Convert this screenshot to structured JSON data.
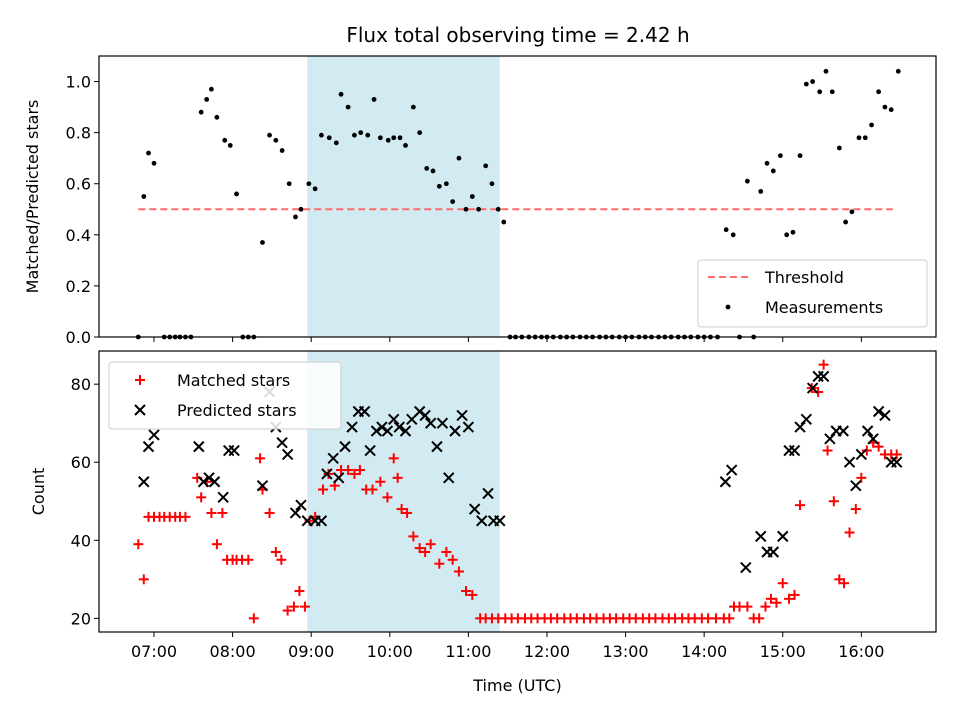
{
  "title": "Flux total observing time = 2.42 h",
  "colors": {
    "shade": "#add8e6",
    "threshold": "#ff6b6b",
    "measurement": "#000000",
    "matched": "#ff0000",
    "predicted": "#000000"
  },
  "chart_data": [
    {
      "type": "scatter",
      "ylabel": "Matched/Predicted stars",
      "xlabel": "",
      "xlim": [
        6.3,
        16.95
      ],
      "ylim": [
        0,
        1.1
      ],
      "yticks": [
        "0.0",
        "0.2",
        "0.4",
        "0.6",
        "0.8",
        "1.0"
      ],
      "ytick_values": [
        0,
        0.2,
        0.4,
        0.6,
        0.8,
        1.0
      ],
      "shaded_span": [
        8.95,
        11.4
      ],
      "threshold": {
        "name": "Threshold",
        "value": 0.5,
        "x_range": [
          6.8,
          16.4
        ]
      },
      "legend": [
        "Threshold",
        "Measurements"
      ],
      "legend_location": "lower right",
      "series": [
        {
          "name": "Measurements",
          "x": [
            6.8,
            6.87,
            6.93,
            7.0,
            7.13,
            7.2,
            7.27,
            7.33,
            7.4,
            7.47,
            7.6,
            7.67,
            7.73,
            7.8,
            7.9,
            7.97,
            8.05,
            8.13,
            8.2,
            8.27,
            8.38,
            8.47,
            8.55,
            8.63,
            8.72,
            8.8,
            8.87,
            8.97,
            9.05,
            9.13,
            9.23,
            9.32,
            9.38,
            9.47,
            9.55,
            9.63,
            9.72,
            9.8,
            9.88,
            9.98,
            10.05,
            10.13,
            10.2,
            10.3,
            10.38,
            10.47,
            10.55,
            10.63,
            10.72,
            10.8,
            10.88,
            10.97,
            11.05,
            11.13,
            11.22,
            11.3,
            11.38,
            11.45,
            11.53,
            11.6,
            11.68,
            11.77,
            11.85,
            11.93,
            12.0,
            12.08,
            12.17,
            12.25,
            12.33,
            12.42,
            12.5,
            12.58,
            12.67,
            12.75,
            12.83,
            12.92,
            13.0,
            13.08,
            13.17,
            13.25,
            13.33,
            13.42,
            13.5,
            13.58,
            13.67,
            13.75,
            13.83,
            13.92,
            14.0,
            14.08,
            14.17,
            14.28,
            14.37,
            14.45,
            14.55,
            14.63,
            14.72,
            14.8,
            14.88,
            14.97,
            15.05,
            15.13,
            15.22,
            15.3,
            15.38,
            15.47,
            15.55,
            15.63,
            15.72,
            15.8,
            15.88,
            15.97,
            16.05,
            16.13,
            16.22,
            16.3,
            16.38,
            16.47
          ],
          "y": [
            0.0,
            0.55,
            0.72,
            0.68,
            0.0,
            0.0,
            0.0,
            0.0,
            0.0,
            0.0,
            0.88,
            0.93,
            0.97,
            0.86,
            0.77,
            0.75,
            0.56,
            0.0,
            0.0,
            0.0,
            0.37,
            0.79,
            0.77,
            0.73,
            0.6,
            0.47,
            0.5,
            0.6,
            0.58,
            0.79,
            0.78,
            0.76,
            0.95,
            0.9,
            0.79,
            0.8,
            0.79,
            0.93,
            0.78,
            0.77,
            0.78,
            0.78,
            0.75,
            0.9,
            0.8,
            0.66,
            0.65,
            0.59,
            0.6,
            0.53,
            0.7,
            0.5,
            0.55,
            0.5,
            0.67,
            0.6,
            0.5,
            0.45,
            0.0,
            0.0,
            0.0,
            0.0,
            0.0,
            0.0,
            0.0,
            0.0,
            0.0,
            0.0,
            0.0,
            0.0,
            0.0,
            0.0,
            0.0,
            0.0,
            0.0,
            0.0,
            0.0,
            0.0,
            0.0,
            0.0,
            0.0,
            0.0,
            0.0,
            0.0,
            0.0,
            0.0,
            0.0,
            0.0,
            0.0,
            0.0,
            0.0,
            0.42,
            0.4,
            0.0,
            0.61,
            0.0,
            0.57,
            0.68,
            0.65,
            0.71,
            0.4,
            0.41,
            0.71,
            0.99,
            1.0,
            0.96,
            1.04,
            0.96,
            0.74,
            0.45,
            0.49,
            0.78,
            0.78,
            0.83,
            0.96,
            0.9,
            0.89,
            1.04
          ]
        }
      ]
    },
    {
      "type": "scatter",
      "ylabel": "Count",
      "xlabel": "Time (UTC)",
      "xlim": [
        6.3,
        16.95
      ],
      "ylim": [
        16.5,
        88.5
      ],
      "yticks": [
        "20",
        "40",
        "60",
        "80"
      ],
      "ytick_values": [
        20,
        40,
        60,
        80
      ],
      "xticks": [
        "07:00",
        "08:00",
        "09:00",
        "10:00",
        "11:00",
        "12:00",
        "13:00",
        "14:00",
        "15:00",
        "16:00"
      ],
      "xtick_values": [
        7,
        8,
        9,
        10,
        11,
        12,
        13,
        14,
        15,
        16
      ],
      "shaded_span": [
        8.95,
        11.4
      ],
      "legend": [
        "Matched stars",
        "Predicted stars"
      ],
      "legend_location": "upper left",
      "series": [
        {
          "name": "Matched stars",
          "marker": "plus",
          "x": [
            6.8,
            6.87,
            6.93,
            7.0,
            7.07,
            7.13,
            7.2,
            7.27,
            7.33,
            7.4,
            7.55,
            7.6,
            7.67,
            7.73,
            7.8,
            7.87,
            7.93,
            8.0,
            8.05,
            8.12,
            8.2,
            8.27,
            8.35,
            8.38,
            8.47,
            8.55,
            8.62,
            8.7,
            8.78,
            8.85,
            8.92,
            8.98,
            9.05,
            9.15,
            9.22,
            9.3,
            9.38,
            9.47,
            9.55,
            9.62,
            9.7,
            9.78,
            9.88,
            9.97,
            10.05,
            10.1,
            10.15,
            10.22,
            10.3,
            10.38,
            10.45,
            10.52,
            10.63,
            10.72,
            10.8,
            10.88,
            10.97,
            11.05,
            11.15,
            11.22,
            11.3,
            11.38,
            11.47,
            11.55,
            11.63,
            11.72,
            11.8,
            11.88,
            11.97,
            12.05,
            12.13,
            12.22,
            12.3,
            12.38,
            12.47,
            12.55,
            12.63,
            12.72,
            12.8,
            12.88,
            12.97,
            13.05,
            13.13,
            13.22,
            13.3,
            13.38,
            13.47,
            13.55,
            13.63,
            13.72,
            13.8,
            13.88,
            13.97,
            14.05,
            14.15,
            14.25,
            14.32,
            14.38,
            14.45,
            14.55,
            14.63,
            14.7,
            14.78,
            14.85,
            14.92,
            15.0,
            15.08,
            15.15,
            15.22,
            15.37,
            15.45,
            15.52,
            15.57,
            15.65,
            15.72,
            15.78,
            15.85,
            15.93,
            16.0,
            16.07,
            16.15,
            16.22,
            16.3,
            16.38,
            16.45
          ],
          "y": [
            39,
            30,
            46,
            46,
            46,
            46,
            46,
            46,
            46,
            46,
            56,
            51,
            55,
            47,
            39,
            47,
            35,
            35,
            35,
            35,
            35,
            20,
            61,
            53,
            47,
            37,
            35,
            22,
            23,
            27,
            23,
            45,
            46,
            53,
            57,
            54,
            58,
            58,
            57,
            58,
            53,
            53,
            55,
            51,
            61,
            56,
            48,
            47,
            41,
            38,
            37,
            39,
            34,
            37,
            35,
            32,
            27,
            26,
            20,
            20,
            20,
            20,
            20,
            20,
            20,
            20,
            20,
            20,
            20,
            20,
            20,
            20,
            20,
            20,
            20,
            20,
            20,
            20,
            20,
            20,
            20,
            20,
            20,
            20,
            20,
            20,
            20,
            20,
            20,
            20,
            20,
            20,
            20,
            20,
            20,
            20,
            20,
            23,
            23,
            23,
            20,
            20,
            23,
            25,
            24,
            29,
            25,
            26,
            49,
            79,
            78,
            85,
            63,
            50,
            30,
            29,
            42,
            48,
            56,
            63,
            65,
            64,
            62,
            62,
            62
          ]
        },
        {
          "name": "Predicted stars",
          "marker": "x",
          "x": [
            6.87,
            6.93,
            7.0,
            7.57,
            7.63,
            7.7,
            7.77,
            7.88,
            7.95,
            8.02,
            8.38,
            8.47,
            8.55,
            8.63,
            8.7,
            8.8,
            8.87,
            8.95,
            9.05,
            9.13,
            9.2,
            9.28,
            9.35,
            9.43,
            9.52,
            9.6,
            9.68,
            9.75,
            9.83,
            9.9,
            9.97,
            10.05,
            10.12,
            10.2,
            10.28,
            10.38,
            10.45,
            10.52,
            10.6,
            10.67,
            10.75,
            10.83,
            10.92,
            11.0,
            11.08,
            11.17,
            11.25,
            11.32,
            11.4,
            14.27,
            14.35,
            14.53,
            14.72,
            14.8,
            14.88,
            15.0,
            15.08,
            15.15,
            15.22,
            15.3,
            15.38,
            15.45,
            15.52,
            15.6,
            15.68,
            15.77,
            15.85,
            15.93,
            16.0,
            16.08,
            16.15,
            16.22,
            16.3,
            16.38,
            16.45
          ],
          "y": [
            55,
            64,
            67,
            64,
            55,
            56,
            55,
            51,
            63,
            63,
            54,
            78,
            69,
            65,
            62,
            47,
            49,
            45,
            45,
            45,
            57,
            61,
            56,
            64,
            69,
            73,
            73,
            63,
            68,
            69,
            68,
            71,
            69,
            68,
            71,
            73,
            72,
            70,
            64,
            70,
            56,
            68,
            72,
            69,
            48,
            45,
            52,
            45,
            45,
            55,
            58,
            33,
            41,
            37,
            37,
            41,
            63,
            63,
            69,
            71,
            79,
            82,
            82,
            66,
            68,
            68,
            60,
            54,
            62,
            68,
            66,
            73,
            72,
            60,
            60
          ]
        }
      ]
    }
  ]
}
